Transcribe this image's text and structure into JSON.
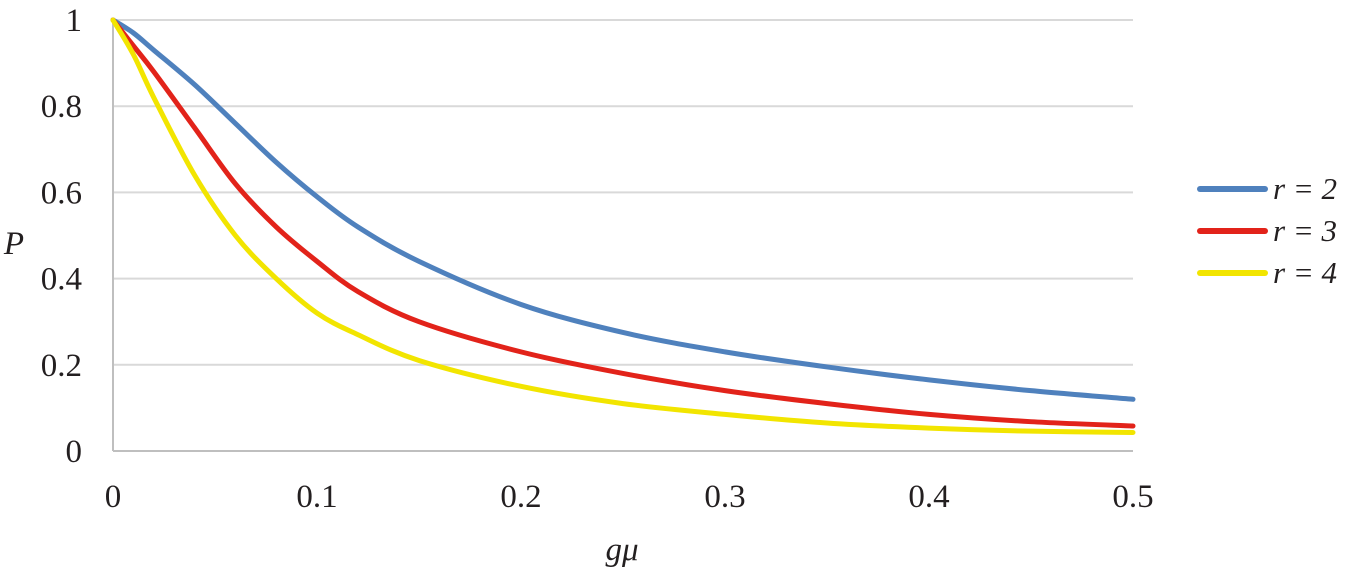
{
  "chart_data": {
    "type": "line",
    "title": "",
    "xlabel": "gμ",
    "ylabel": "P",
    "xlim": [
      0,
      0.5
    ],
    "ylim": [
      0,
      1
    ],
    "xticks": [
      "0",
      "0.1",
      "0.2",
      "0.3",
      "0.4",
      "0.5"
    ],
    "yticks": [
      "0",
      "0.2",
      "0.4",
      "0.6",
      "0.8",
      "1"
    ],
    "grid": "horizontal",
    "legend_position": "right",
    "series": [
      {
        "name": "r = 2",
        "color": "#4f81bd",
        "x": [
          0,
          0.01,
          0.02,
          0.04,
          0.06,
          0.08,
          0.1,
          0.12,
          0.15,
          0.2,
          0.25,
          0.3,
          0.35,
          0.4,
          0.45,
          0.5
        ],
        "y": [
          1,
          0.97,
          0.93,
          0.85,
          0.76,
          0.67,
          0.59,
          0.52,
          0.44,
          0.34,
          0.275,
          0.23,
          0.195,
          0.165,
          0.14,
          0.12
        ]
      },
      {
        "name": "r = 3",
        "color": "#e2231a",
        "x": [
          0,
          0.01,
          0.02,
          0.04,
          0.06,
          0.08,
          0.1,
          0.12,
          0.15,
          0.2,
          0.25,
          0.3,
          0.35,
          0.4,
          0.45,
          0.5
        ],
        "y": [
          1,
          0.94,
          0.88,
          0.75,
          0.62,
          0.52,
          0.44,
          0.37,
          0.3,
          0.23,
          0.18,
          0.14,
          0.11,
          0.085,
          0.068,
          0.058
        ]
      },
      {
        "name": "r = 4",
        "color": "#f2e500",
        "x": [
          0,
          0.01,
          0.02,
          0.04,
          0.06,
          0.08,
          0.1,
          0.12,
          0.15,
          0.2,
          0.25,
          0.3,
          0.35,
          0.4,
          0.45,
          0.5
        ],
        "y": [
          1,
          0.92,
          0.82,
          0.64,
          0.5,
          0.4,
          0.32,
          0.27,
          0.21,
          0.15,
          0.11,
          0.085,
          0.065,
          0.053,
          0.046,
          0.043
        ]
      }
    ]
  }
}
